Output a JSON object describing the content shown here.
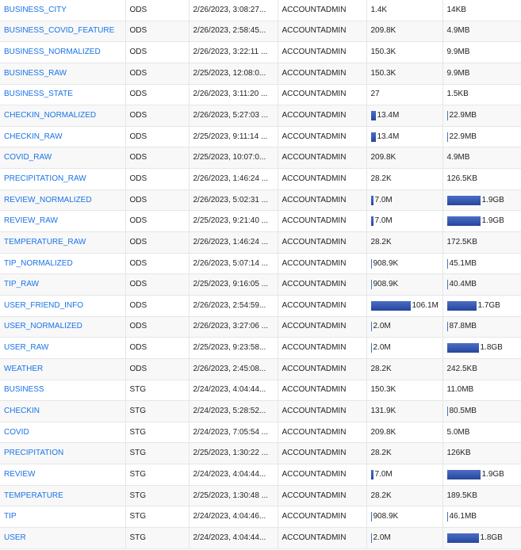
{
  "colors": {
    "link": "#1a73e8",
    "bar": "#2f4fa8",
    "row_alt": "#f8f8f8",
    "grid": "#e6e6e6"
  },
  "rows": [
    {
      "name": "BUSINESS_CITY",
      "schema": "ODS",
      "created": "2/26/2023, 3:08:27...",
      "owner": "ACCOUNTADMIN",
      "rows": "1.4K",
      "rows_bar": null,
      "bytes": "14KB",
      "bytes_bar": null
    },
    {
      "name": "BUSINESS_COVID_FEATURE",
      "schema": "ODS",
      "created": "2/26/2023, 2:58:45...",
      "owner": "ACCOUNTADMIN",
      "rows": "209.8K",
      "rows_bar": null,
      "bytes": "4.9MB",
      "bytes_bar": null
    },
    {
      "name": "BUSINESS_NORMALIZED",
      "schema": "ODS",
      "created": "2/26/2023, 3:22:11 ...",
      "owner": "ACCOUNTADMIN",
      "rows": "150.3K",
      "rows_bar": null,
      "bytes": "9.9MB",
      "bytes_bar": null
    },
    {
      "name": "BUSINESS_RAW",
      "schema": "ODS",
      "created": "2/25/2023, 12:08:0...",
      "owner": "ACCOUNTADMIN",
      "rows": "150.3K",
      "rows_bar": null,
      "bytes": "9.9MB",
      "bytes_bar": null
    },
    {
      "name": "BUSINESS_STATE",
      "schema": "ODS",
      "created": "2/26/2023, 3:11:20 ...",
      "owner": "ACCOUNTADMIN",
      "rows": "27",
      "rows_bar": null,
      "bytes": "1.5KB",
      "bytes_bar": null
    },
    {
      "name": "CHECKIN_NORMALIZED",
      "schema": "ODS",
      "created": "2/26/2023, 5:27:03 ...",
      "owner": "ACCOUNTADMIN",
      "rows": "13.4M",
      "rows_bar": 0.126,
      "bytes": "22.9MB",
      "bytes_bar": 0.0
    },
    {
      "name": "CHECKIN_RAW",
      "schema": "ODS",
      "created": "2/25/2023, 9:11:14 ...",
      "owner": "ACCOUNTADMIN",
      "rows": "13.4M",
      "rows_bar": 0.126,
      "bytes": "22.9MB",
      "bytes_bar": 0.0
    },
    {
      "name": "COVID_RAW",
      "schema": "ODS",
      "created": "2/25/2023, 10:07:0...",
      "owner": "ACCOUNTADMIN",
      "rows": "209.8K",
      "rows_bar": null,
      "bytes": "4.9MB",
      "bytes_bar": null
    },
    {
      "name": "PRECIPITATION_RAW",
      "schema": "ODS",
      "created": "2/26/2023, 1:46:24 ...",
      "owner": "ACCOUNTADMIN",
      "rows": "28.2K",
      "rows_bar": null,
      "bytes": "126.5KB",
      "bytes_bar": null
    },
    {
      "name": "REVIEW_NORMALIZED",
      "schema": "ODS",
      "created": "2/26/2023, 5:02:31 ...",
      "owner": "ACCOUNTADMIN",
      "rows": "7.0M",
      "rows_bar": 0.066,
      "bytes": "1.9GB",
      "bytes_bar": 1.0
    },
    {
      "name": "REVIEW_RAW",
      "schema": "ODS",
      "created": "2/25/2023, 9:21:40 ...",
      "owner": "ACCOUNTADMIN",
      "rows": "7.0M",
      "rows_bar": 0.066,
      "bytes": "1.9GB",
      "bytes_bar": 1.0
    },
    {
      "name": "TEMPERATURE_RAW",
      "schema": "ODS",
      "created": "2/26/2023, 1:46:24 ...",
      "owner": "ACCOUNTADMIN",
      "rows": "28.2K",
      "rows_bar": null,
      "bytes": "172.5KB",
      "bytes_bar": null
    },
    {
      "name": "TIP_NORMALIZED",
      "schema": "ODS",
      "created": "2/26/2023, 5:07:14 ...",
      "owner": "ACCOUNTADMIN",
      "rows": "908.9K",
      "rows_bar": 0.0,
      "bytes": "45.1MB",
      "bytes_bar": 0.0
    },
    {
      "name": "TIP_RAW",
      "schema": "ODS",
      "created": "2/25/2023, 9:16:05 ...",
      "owner": "ACCOUNTADMIN",
      "rows": "908.9K",
      "rows_bar": 0.0,
      "bytes": "40.4MB",
      "bytes_bar": 0.0
    },
    {
      "name": "USER_FRIEND_INFO",
      "schema": "ODS",
      "created": "2/26/2023, 2:54:59...",
      "owner": "ACCOUNTADMIN",
      "rows": "106.1M",
      "rows_bar": 1.0,
      "bytes": "1.7GB",
      "bytes_bar": 0.89
    },
    {
      "name": "USER_NORMALIZED",
      "schema": "ODS",
      "created": "2/26/2023, 3:27:06 ...",
      "owner": "ACCOUNTADMIN",
      "rows": "2.0M",
      "rows_bar": 0.0,
      "bytes": "87.8MB",
      "bytes_bar": 0.0
    },
    {
      "name": "USER_RAW",
      "schema": "ODS",
      "created": "2/25/2023, 9:23:58...",
      "owner": "ACCOUNTADMIN",
      "rows": "2.0M",
      "rows_bar": 0.0,
      "bytes": "1.8GB",
      "bytes_bar": 0.95
    },
    {
      "name": "WEATHER",
      "schema": "ODS",
      "created": "2/26/2023, 2:45:08...",
      "owner": "ACCOUNTADMIN",
      "rows": "28.2K",
      "rows_bar": null,
      "bytes": "242.5KB",
      "bytes_bar": null
    },
    {
      "name": "BUSINESS",
      "schema": "STG",
      "created": "2/24/2023, 4:04:44...",
      "owner": "ACCOUNTADMIN",
      "rows": "150.3K",
      "rows_bar": null,
      "bytes": "11.0MB",
      "bytes_bar": null
    },
    {
      "name": "CHECKIN",
      "schema": "STG",
      "created": "2/24/2023, 5:28:52...",
      "owner": "ACCOUNTADMIN",
      "rows": "131.9K",
      "rows_bar": null,
      "bytes": "80.5MB",
      "bytes_bar": 0.0
    },
    {
      "name": "COVID",
      "schema": "STG",
      "created": "2/24/2023, 7:05:54 ...",
      "owner": "ACCOUNTADMIN",
      "rows": "209.8K",
      "rows_bar": null,
      "bytes": "5.0MB",
      "bytes_bar": null
    },
    {
      "name": "PRECIPITATION",
      "schema": "STG",
      "created": "2/25/2023, 1:30:22 ...",
      "owner": "ACCOUNTADMIN",
      "rows": "28.2K",
      "rows_bar": null,
      "bytes": "126KB",
      "bytes_bar": null
    },
    {
      "name": "REVIEW",
      "schema": "STG",
      "created": "2/24/2023, 4:04:44...",
      "owner": "ACCOUNTADMIN",
      "rows": "7.0M",
      "rows_bar": 0.066,
      "bytes": "1.9GB",
      "bytes_bar": 1.0
    },
    {
      "name": "TEMPERATURE",
      "schema": "STG",
      "created": "2/25/2023, 1:30:48 ...",
      "owner": "ACCOUNTADMIN",
      "rows": "28.2K",
      "rows_bar": null,
      "bytes": "189.5KB",
      "bytes_bar": null
    },
    {
      "name": "TIP",
      "schema": "STG",
      "created": "2/24/2023, 4:04:46...",
      "owner": "ACCOUNTADMIN",
      "rows": "908.9K",
      "rows_bar": 0.0,
      "bytes": "46.1MB",
      "bytes_bar": 0.0
    },
    {
      "name": "USER",
      "schema": "STG",
      "created": "2/24/2023, 4:04:44...",
      "owner": "ACCOUNTADMIN",
      "rows": "2.0M",
      "rows_bar": 0.0,
      "bytes": "1.8GB",
      "bytes_bar": 0.95
    }
  ]
}
